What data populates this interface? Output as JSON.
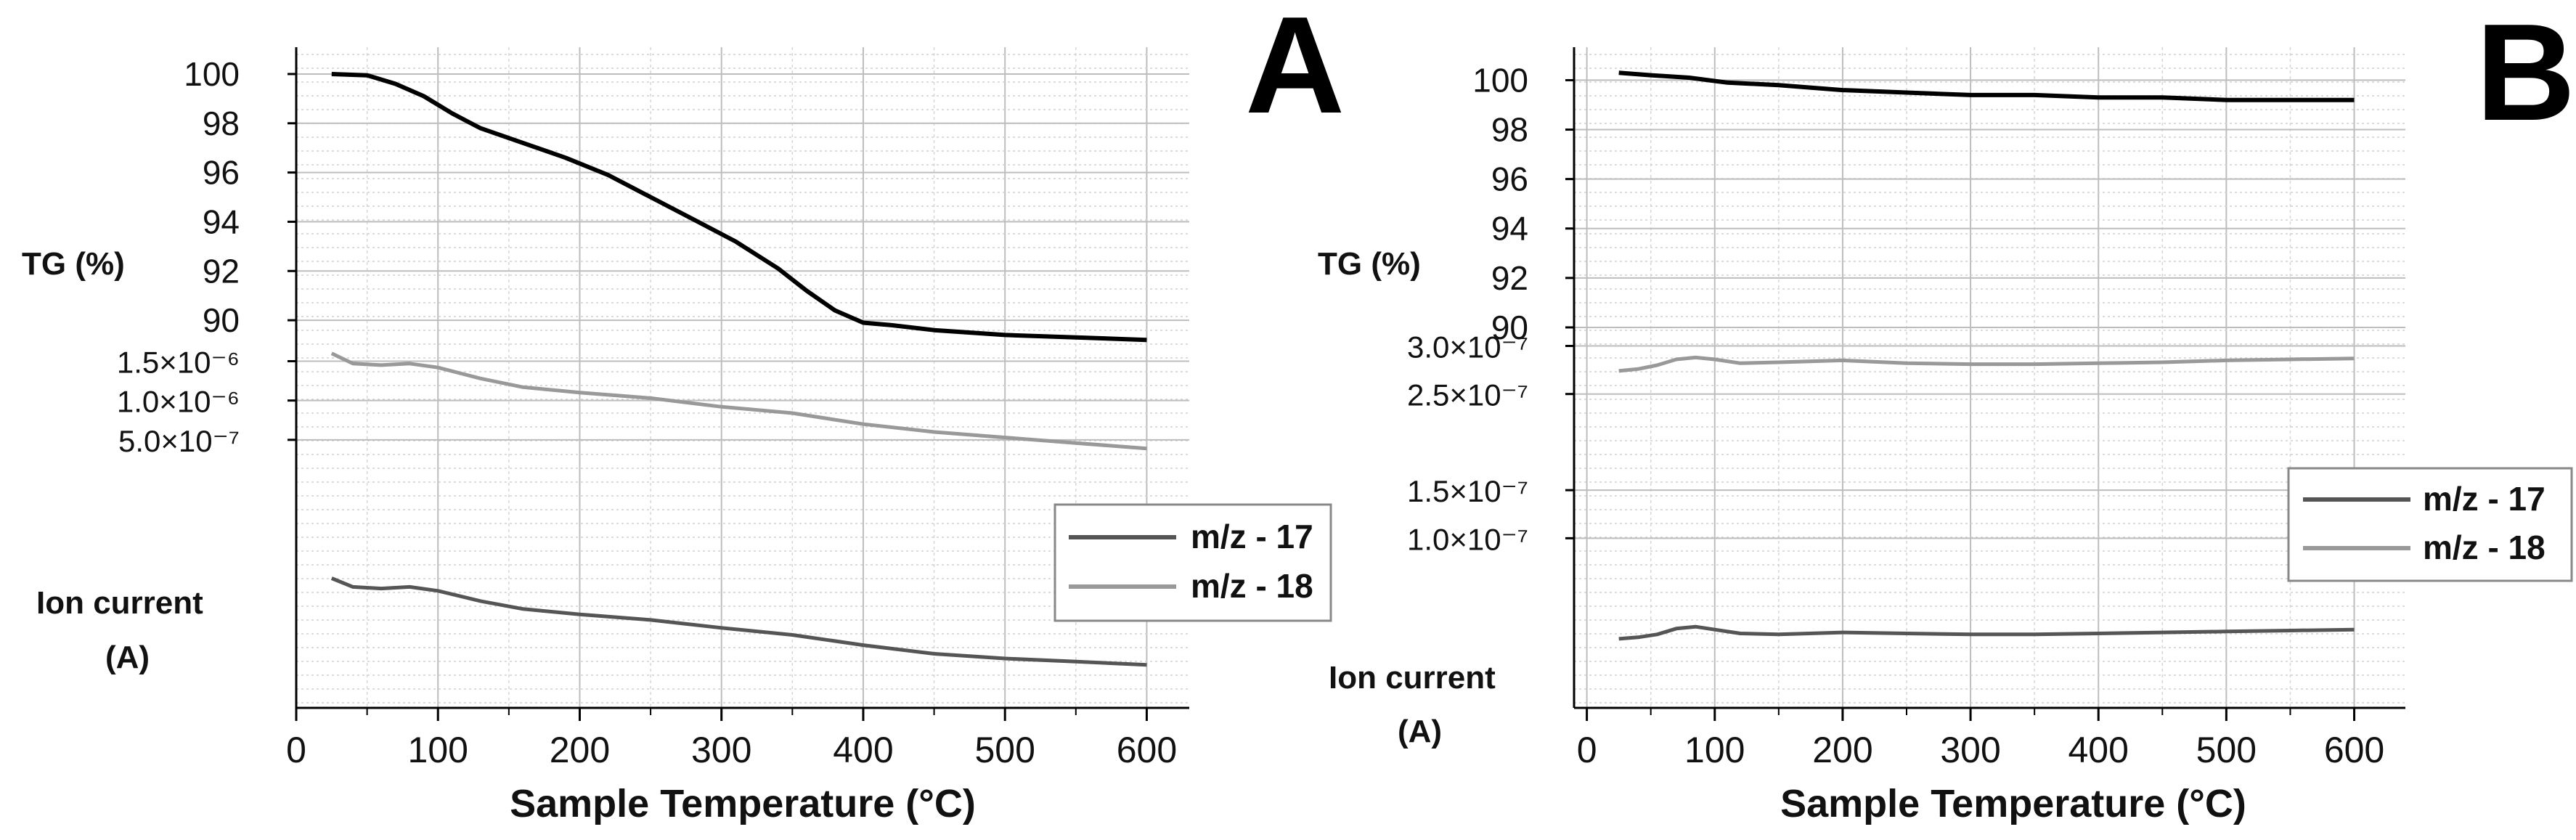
{
  "chart_data": [
    {
      "panel": "A",
      "type": "line",
      "xlabel": "Sample Temperature (°C)",
      "x_ticks": [
        "0",
        "100",
        "200",
        "300",
        "400",
        "500",
        "600"
      ],
      "xlim": [
        0,
        630
      ],
      "tg_label": "TG (%)",
      "tg_ticks": [
        "100",
        "98",
        "96",
        "94",
        "92",
        "90"
      ],
      "tg_range": [
        89,
        100.5
      ],
      "ion_label_line1": "Ion current",
      "ion_label_line2": "(A)",
      "ion_ticks": [
        "1.5×10⁻⁶",
        "1.0×10⁻⁶",
        "5.0×10⁻⁷"
      ],
      "ion_tick_values": [
        1.5e-06,
        1e-06,
        5e-07
      ],
      "ion_range": [
        -2.4e-06,
        1.8e-06
      ],
      "legend": [
        "m/z - 17",
        "m/z - 18"
      ],
      "series": [
        {
          "name": "TG",
          "axis": "tg",
          "color": "#000000",
          "x": [
            25,
            50,
            70,
            90,
            110,
            130,
            160,
            190,
            220,
            250,
            280,
            310,
            340,
            360,
            380,
            400,
            420,
            450,
            500,
            550,
            600
          ],
          "y": [
            100,
            99.95,
            99.6,
            99.1,
            98.4,
            97.8,
            97.2,
            96.6,
            95.9,
            95.0,
            94.1,
            93.2,
            92.1,
            91.2,
            90.4,
            89.9,
            89.8,
            89.6,
            89.4,
            89.3,
            89.2
          ]
        },
        {
          "name": "m/z - 18",
          "axis": "ion",
          "color": "#999999",
          "x": [
            25,
            40,
            60,
            80,
            100,
            130,
            160,
            200,
            250,
            300,
            350,
            400,
            450,
            500,
            550,
            600
          ],
          "y": [
            1.6e-06,
            1.47e-06,
            1.45e-06,
            1.47e-06,
            1.42e-06,
            1.28e-06,
            1.17e-06,
            1.1e-06,
            1.03e-06,
            9.2e-07,
            8.4e-07,
            7e-07,
            6e-07,
            5.3e-07,
            4.6e-07,
            3.9e-07
          ]
        },
        {
          "name": "m/z - 17",
          "axis": "ion",
          "color": "#555555",
          "x": [
            25,
            40,
            60,
            80,
            100,
            130,
            160,
            200,
            250,
            300,
            350,
            400,
            450,
            500,
            550,
            600
          ],
          "y": [
            -1.26e-06,
            -1.37e-06,
            -1.39e-06,
            -1.37e-06,
            -1.42e-06,
            -1.55e-06,
            -1.65e-06,
            -1.72e-06,
            -1.79e-06,
            -1.89e-06,
            -1.98e-06,
            -2.11e-06,
            -2.22e-06,
            -2.28e-06,
            -2.32e-06,
            -2.36e-06
          ]
        }
      ]
    },
    {
      "panel": "B",
      "type": "line",
      "xlabel": "Sample Temperature (°C)",
      "x_ticks": [
        "0",
        "100",
        "200",
        "300",
        "400",
        "500",
        "600"
      ],
      "xlim": [
        -10,
        640
      ],
      "tg_label": "TG (%)",
      "tg_ticks": [
        "100",
        "98",
        "96",
        "94",
        "92",
        "90"
      ],
      "tg_range": [
        89,
        100.6
      ],
      "ion_label_line1": "Ion current",
      "ion_label_line2": "(A)",
      "ion_ticks": [
        "3.0×10⁻⁷",
        "2.5×10⁻⁷",
        "1.5×10⁻⁷",
        "1.0×10⁻⁷"
      ],
      "ion_tick_values": [
        3e-07,
        2.5e-07,
        1.5e-07,
        1e-07
      ],
      "ion_range": [
        -5e-08,
        3.2e-07
      ],
      "legend": [
        "m/z - 17",
        "m/z - 18"
      ],
      "series": [
        {
          "name": "TG",
          "axis": "tg",
          "color": "#000000",
          "x": [
            25,
            50,
            80,
            110,
            150,
            200,
            250,
            300,
            350,
            400,
            450,
            500,
            550,
            600
          ],
          "y": [
            100.3,
            100.2,
            100.1,
            99.9,
            99.8,
            99.6,
            99.5,
            99.4,
            99.4,
            99.3,
            99.3,
            99.2,
            99.2,
            99.2
          ]
        },
        {
          "name": "m/z - 18",
          "axis": "ion",
          "color": "#999999",
          "x": [
            25,
            40,
            55,
            70,
            85,
            100,
            120,
            150,
            200,
            250,
            300,
            350,
            400,
            450,
            500,
            550,
            600
          ],
          "y": [
            2.74e-07,
            2.76e-07,
            2.8e-07,
            2.86e-07,
            2.88e-07,
            2.86e-07,
            2.82e-07,
            2.83e-07,
            2.85e-07,
            2.82e-07,
            2.81e-07,
            2.81e-07,
            2.82e-07,
            2.83e-07,
            2.85e-07,
            2.86e-07,
            2.87e-07
          ]
        },
        {
          "name": "m/z - 17",
          "axis": "ion",
          "color": "#555555",
          "x": [
            25,
            40,
            55,
            70,
            85,
            100,
            120,
            150,
            200,
            250,
            300,
            350,
            400,
            450,
            500,
            550,
            600
          ],
          "y": [
            -4.6e-09,
            -3e-09,
            0,
            6e-09,
            8e-09,
            5e-09,
            1e-09,
            0,
            2e-09,
            1e-09,
            0,
            0,
            1e-09,
            2e-09,
            3e-09,
            4e-09,
            5e-09
          ]
        }
      ]
    }
  ]
}
